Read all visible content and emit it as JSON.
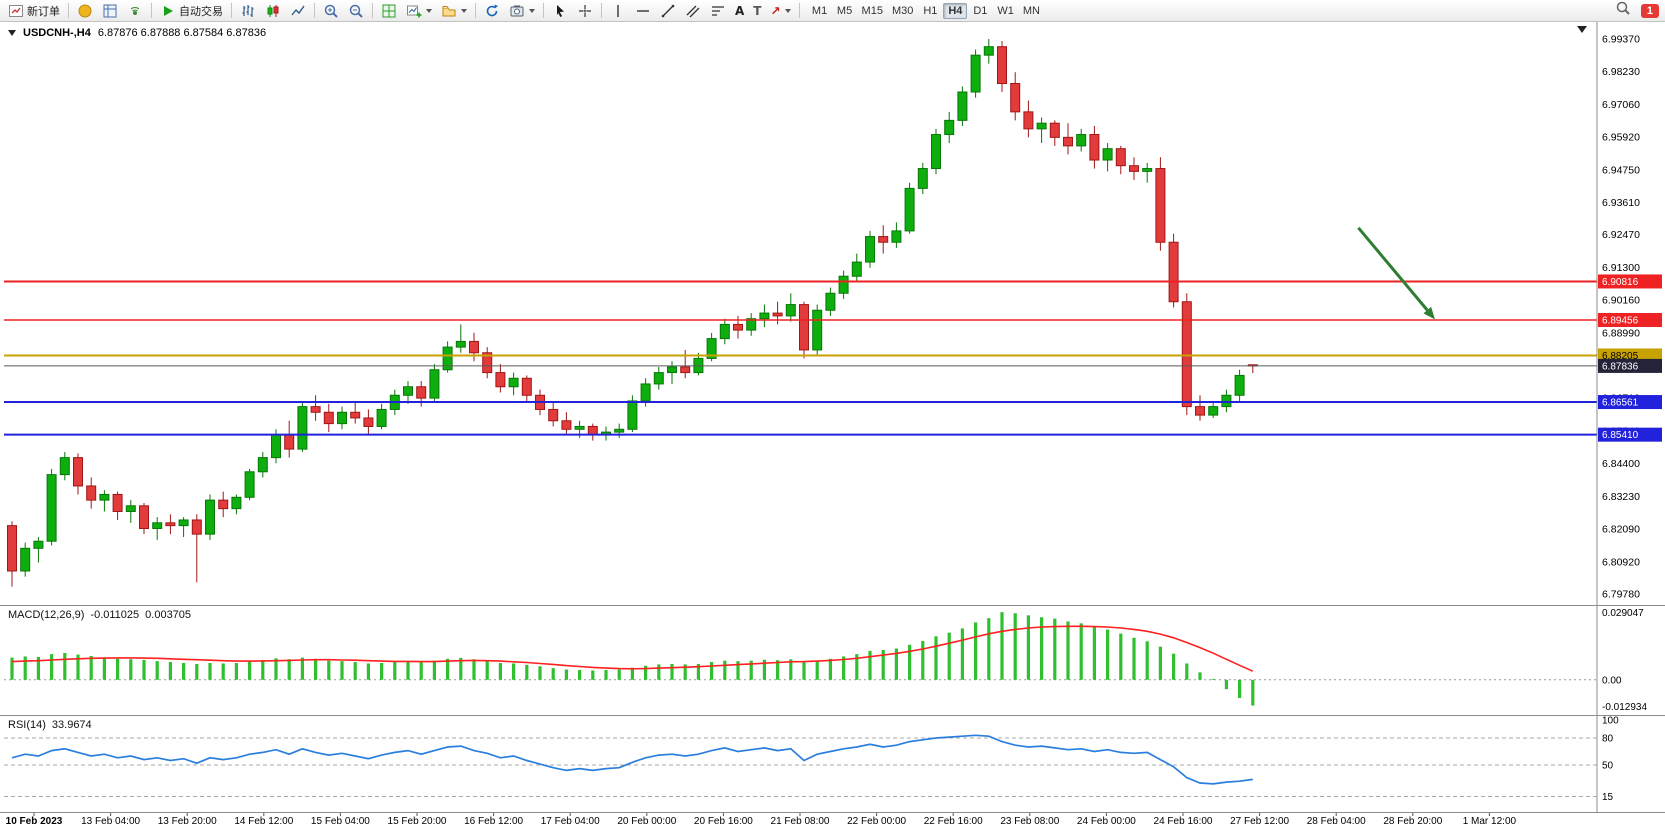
{
  "window": {
    "badge_count": "1"
  },
  "toolbar": {
    "new_order_label": "新订单",
    "auto_trading_label": "自动交易",
    "tool_glyphs": {
      "text": "A",
      "label": "T",
      "arrow": "↗"
    },
    "timeframes": [
      "M1",
      "M5",
      "M15",
      "M30",
      "H1",
      "H4",
      "D1",
      "W1",
      "MN"
    ],
    "active_timeframe": "H4"
  },
  "chart": {
    "title_symbol": "USDCNH-,H4",
    "title_ohlc": "6.87876 6.87888 6.87584 6.87836"
  },
  "chart_data": {
    "type": "candlestick",
    "symbol": "USDCNH",
    "timeframe": "H4",
    "current_ohlc": {
      "open": 6.87876,
      "high": 6.87888,
      "low": 6.87584,
      "close": 6.87836
    },
    "colors": {
      "up": "#0fae0f",
      "up_stroke": "#077707",
      "down": "#e23b3b",
      "down_stroke": "#a11616",
      "background": "#ffffff"
    },
    "price_axis": {
      "min": 6.794,
      "max": 6.999,
      "labels": [
        "6.99370",
        "6.98230",
        "6.97060",
        "6.95920",
        "6.94750",
        "6.93610",
        "6.92470",
        "6.91300",
        "6.90160",
        "6.88990",
        "6.87850",
        "6.86710",
        "6.85540",
        "6.84400",
        "6.83230",
        "6.82090",
        "6.80920",
        "6.79780"
      ]
    },
    "time_labels": [
      "10 Feb 2023",
      "13 Feb 04:00",
      "13 Feb 20:00",
      "14 Feb 12:00",
      "15 Feb 04:00",
      "15 Feb 20:00",
      "16 Feb 12:00",
      "17 Feb 04:00",
      "20 Feb 00:00",
      "20 Feb 16:00",
      "21 Feb 08:00",
      "22 Feb 00:00",
      "22 Feb 16:00",
      "23 Feb 08:00",
      "24 Feb 00:00",
      "24 Feb 16:00",
      "27 Feb 12:00",
      "28 Feb 04:00",
      "28 Feb 20:00",
      "1 Mar 12:00"
    ],
    "candles": [
      [
        6.822,
        6.8235,
        6.8005,
        6.806
      ],
      [
        6.806,
        6.816,
        6.804,
        6.814
      ],
      [
        6.814,
        6.818,
        6.809,
        6.8165
      ],
      [
        6.8165,
        6.842,
        6.815,
        6.84
      ],
      [
        6.84,
        6.848,
        6.838,
        6.846
      ],
      [
        6.846,
        6.8475,
        6.833,
        6.836
      ],
      [
        6.836,
        6.839,
        6.828,
        6.831
      ],
      [
        6.831,
        6.8345,
        6.827,
        6.833
      ],
      [
        6.833,
        6.834,
        6.824,
        6.827
      ],
      [
        6.827,
        6.831,
        6.823,
        6.829
      ],
      [
        6.829,
        6.83,
        6.819,
        6.821
      ],
      [
        6.821,
        6.825,
        6.817,
        6.823
      ],
      [
        6.823,
        6.826,
        6.819,
        6.822
      ],
      [
        6.822,
        6.825,
        6.818,
        6.824
      ],
      [
        6.824,
        6.826,
        6.802,
        6.819
      ],
      [
        6.819,
        6.833,
        6.817,
        6.831
      ],
      [
        6.831,
        6.834,
        6.825,
        6.828
      ],
      [
        6.828,
        6.833,
        6.826,
        6.832
      ],
      [
        6.832,
        6.842,
        6.831,
        6.841
      ],
      [
        6.841,
        6.848,
        6.839,
        6.846
      ],
      [
        6.846,
        6.856,
        6.844,
        6.854
      ],
      [
        6.854,
        6.859,
        6.846,
        6.849
      ],
      [
        6.849,
        6.866,
        6.848,
        6.864
      ],
      [
        6.864,
        6.868,
        6.859,
        6.862
      ],
      [
        6.862,
        6.865,
        6.855,
        6.858
      ],
      [
        6.858,
        6.864,
        6.856,
        6.862
      ],
      [
        6.862,
        6.866,
        6.858,
        6.86
      ],
      [
        6.86,
        6.863,
        6.854,
        6.857
      ],
      [
        6.857,
        6.865,
        6.856,
        6.863
      ],
      [
        6.863,
        6.87,
        6.861,
        6.868
      ],
      [
        6.868,
        6.873,
        6.865,
        6.871
      ],
      [
        6.871,
        6.873,
        6.864,
        6.867
      ],
      [
        6.867,
        6.879,
        6.866,
        6.877
      ],
      [
        6.877,
        6.887,
        6.876,
        6.885
      ],
      [
        6.885,
        6.893,
        6.883,
        6.887
      ],
      [
        6.887,
        6.89,
        6.88,
        6.883
      ],
      [
        6.883,
        6.885,
        6.874,
        6.876
      ],
      [
        6.876,
        6.879,
        6.869,
        6.871
      ],
      [
        6.871,
        6.876,
        6.868,
        6.874
      ],
      [
        6.874,
        6.875,
        6.866,
        6.868
      ],
      [
        6.868,
        6.87,
        6.861,
        6.863
      ],
      [
        6.863,
        6.866,
        6.857,
        6.859
      ],
      [
        6.859,
        6.862,
        6.854,
        6.856
      ],
      [
        6.856,
        6.859,
        6.853,
        6.857
      ],
      [
        6.857,
        6.858,
        6.852,
        6.854
      ],
      [
        6.854,
        6.857,
        6.852,
        6.855
      ],
      [
        6.855,
        6.858,
        6.853,
        6.856
      ],
      [
        6.856,
        6.868,
        6.855,
        6.866
      ],
      [
        6.866,
        6.874,
        6.864,
        6.872
      ],
      [
        6.872,
        6.878,
        6.87,
        6.876
      ],
      [
        6.876,
        6.88,
        6.872,
        6.878
      ],
      [
        6.878,
        6.884,
        6.874,
        6.876
      ],
      [
        6.876,
        6.883,
        6.875,
        6.881
      ],
      [
        6.881,
        6.89,
        6.88,
        6.888
      ],
      [
        6.888,
        6.895,
        6.886,
        6.893
      ],
      [
        6.893,
        6.896,
        6.888,
        6.891
      ],
      [
        6.891,
        6.897,
        6.889,
        6.895
      ],
      [
        6.895,
        6.9,
        6.892,
        6.897
      ],
      [
        6.897,
        6.901,
        6.893,
        6.896
      ],
      [
        6.896,
        6.904,
        6.894,
        6.9
      ],
      [
        6.9,
        6.901,
        6.881,
        6.884
      ],
      [
        6.884,
        6.9,
        6.882,
        6.898
      ],
      [
        6.898,
        6.906,
        6.896,
        6.904
      ],
      [
        6.904,
        6.912,
        6.902,
        6.91
      ],
      [
        6.91,
        6.918,
        6.908,
        6.915
      ],
      [
        6.915,
        6.926,
        6.913,
        6.924
      ],
      [
        6.924,
        6.928,
        6.918,
        6.922
      ],
      [
        6.922,
        6.929,
        6.92,
        6.926
      ],
      [
        6.926,
        6.943,
        6.925,
        6.941
      ],
      [
        6.941,
        6.95,
        6.939,
        6.948
      ],
      [
        6.948,
        6.962,
        6.946,
        6.96
      ],
      [
        6.96,
        6.968,
        6.957,
        6.965
      ],
      [
        6.965,
        6.977,
        6.963,
        6.975
      ],
      [
        6.975,
        6.99,
        6.973,
        6.988
      ],
      [
        6.988,
        6.9937,
        6.985,
        6.991
      ],
      [
        6.991,
        6.993,
        6.975,
        6.978
      ],
      [
        6.978,
        6.982,
        6.965,
        6.968
      ],
      [
        6.968,
        6.972,
        6.959,
        6.962
      ],
      [
        6.962,
        6.966,
        6.957,
        6.964
      ],
      [
        6.964,
        6.965,
        6.956,
        6.959
      ],
      [
        6.959,
        6.964,
        6.953,
        6.956
      ],
      [
        6.956,
        6.962,
        6.954,
        6.96
      ],
      [
        6.96,
        6.963,
        6.948,
        6.951
      ],
      [
        6.951,
        6.957,
        6.947,
        6.955
      ],
      [
        6.955,
        6.956,
        6.946,
        6.949
      ],
      [
        6.949,
        6.952,
        6.944,
        6.947
      ],
      [
        6.947,
        6.95,
        6.943,
        6.948
      ],
      [
        6.948,
        6.952,
        6.919,
        6.922
      ],
      [
        6.922,
        6.925,
        6.899,
        6.901
      ],
      [
        6.901,
        6.904,
        6.861,
        6.864
      ],
      [
        6.864,
        6.868,
        6.859,
        6.861
      ],
      [
        6.861,
        6.866,
        6.86,
        6.864
      ],
      [
        6.864,
        6.87,
        6.862,
        6.868
      ],
      [
        6.868,
        6.877,
        6.866,
        6.875
      ],
      [
        6.87876,
        6.87888,
        6.87584,
        6.87836
      ]
    ],
    "hlines": [
      {
        "name": "resistance-line-1",
        "price": 6.90816,
        "label": "6.90816",
        "color": "#ee2222",
        "width": 2,
        "tag_bg": "#ee2222",
        "tag_fg": "#ffffff",
        "interactable": true
      },
      {
        "name": "resistance-line-2",
        "price": 6.89456,
        "label": "6.89456",
        "color": "#ee2222",
        "width": 1.4,
        "tag_bg": "#ee2222",
        "tag_fg": "#ffffff",
        "interactable": true
      },
      {
        "name": "pivot-line",
        "price": 6.88205,
        "label": "6.88205",
        "color": "#c8a200",
        "width": 2,
        "tag_bg": "#c8a200",
        "tag_fg": "#000000",
        "interactable": true
      },
      {
        "name": "bid-price-line",
        "price": 6.87836,
        "label": "6.87836",
        "color": "#5a5a5a",
        "width": 1,
        "tag_bg": "#23233a",
        "tag_fg": "#ffffff",
        "interactable": false
      },
      {
        "name": "support-line-1",
        "price": 6.86561,
        "label": "6.86561",
        "color": "#2222dd",
        "width": 2,
        "tag_bg": "#2222dd",
        "tag_fg": "#ffffff",
        "interactable": true
      },
      {
        "name": "support-line-2",
        "price": 6.8541,
        "label": "6.85410",
        "color": "#2222dd",
        "width": 2,
        "tag_bg": "#2222dd",
        "tag_fg": "#ffffff",
        "interactable": true
      }
    ],
    "annotation_arrow": {
      "from_bar": 102,
      "from_price": 6.9271,
      "to_bar": 107.8,
      "to_price": 6.8948,
      "color": "#2e7d32"
    },
    "indicators": {
      "macd": {
        "label": "MACD(12,26,9)",
        "value": "-0.011025",
        "signal": "0.003705",
        "max": 0.029047,
        "min": -0.012934,
        "scale_labels": [
          "0.029047",
          "0.00",
          "-0.012934"
        ],
        "histogram_color": "#2fbf2f",
        "signal_color": "#ff2020",
        "histogram": [
          0.0095,
          0.01,
          0.0098,
          0.011,
          0.0115,
          0.0108,
          0.0102,
          0.0095,
          0.009,
          0.0088,
          0.0085,
          0.008,
          0.0076,
          0.0072,
          0.0068,
          0.0072,
          0.007,
          0.0072,
          0.0078,
          0.0085,
          0.0092,
          0.0088,
          0.0095,
          0.009,
          0.0082,
          0.008,
          0.0076,
          0.007,
          0.0072,
          0.0078,
          0.0082,
          0.0076,
          0.0082,
          0.009,
          0.0094,
          0.0088,
          0.008,
          0.0072,
          0.007,
          0.0064,
          0.0058,
          0.005,
          0.0044,
          0.0042,
          0.004,
          0.0042,
          0.0044,
          0.0052,
          0.006,
          0.0066,
          0.0068,
          0.0066,
          0.0068,
          0.0076,
          0.0082,
          0.008,
          0.0082,
          0.0086,
          0.0084,
          0.0088,
          0.0078,
          0.0082,
          0.009,
          0.01,
          0.011,
          0.0124,
          0.0128,
          0.0134,
          0.015,
          0.0166,
          0.0186,
          0.0202,
          0.022,
          0.0246,
          0.0264,
          0.029,
          0.0285,
          0.0276,
          0.0268,
          0.0262,
          0.025,
          0.0242,
          0.023,
          0.0215,
          0.0198,
          0.018,
          0.0165,
          0.0142,
          0.0112,
          0.007,
          0.0032,
          0.0004,
          -0.004,
          -0.0078,
          -0.011025
        ],
        "signal_line": [
          0.0078,
          0.008,
          0.0082,
          0.0085,
          0.0088,
          0.009,
          0.0092,
          0.0093,
          0.0094,
          0.0094,
          0.0093,
          0.0092,
          0.009,
          0.0088,
          0.0086,
          0.0084,
          0.0082,
          0.008,
          0.008,
          0.0081,
          0.0082,
          0.0083,
          0.0085,
          0.0086,
          0.0086,
          0.0085,
          0.0084,
          0.0082,
          0.008,
          0.0079,
          0.0079,
          0.0078,
          0.0078,
          0.008,
          0.0082,
          0.0083,
          0.0082,
          0.008,
          0.0077,
          0.0074,
          0.007,
          0.0066,
          0.0061,
          0.0057,
          0.0053,
          0.005,
          0.0048,
          0.0047,
          0.0048,
          0.005,
          0.0052,
          0.0054,
          0.0056,
          0.0059,
          0.0062,
          0.0065,
          0.0068,
          0.0071,
          0.0074,
          0.0077,
          0.0078,
          0.008,
          0.0083,
          0.0087,
          0.0092,
          0.0099,
          0.0106,
          0.0113,
          0.0122,
          0.0132,
          0.0144,
          0.0157,
          0.017,
          0.0184,
          0.0197,
          0.0208,
          0.0216,
          0.0222,
          0.0226,
          0.0228,
          0.0229,
          0.0229,
          0.0228,
          0.0226,
          0.0222,
          0.0216,
          0.0208,
          0.0196,
          0.018,
          0.016,
          0.0138,
          0.0114,
          0.0088,
          0.0062,
          0.003705
        ]
      },
      "rsi": {
        "label": "RSI(14)",
        "value": "33.9674",
        "max": 100,
        "min": 0,
        "levels": [
          80,
          50,
          15
        ],
        "scale_labels": [
          "100",
          "80",
          "50",
          "15"
        ],
        "scale_values": [
          100,
          80,
          50,
          15
        ],
        "color": "#2a7fde",
        "values": [
          58,
          62,
          60,
          66,
          68,
          64,
          60,
          62,
          58,
          60,
          56,
          58,
          55,
          57,
          52,
          58,
          56,
          58,
          62,
          64,
          67,
          62,
          68,
          64,
          61,
          63,
          60,
          57,
          61,
          64,
          66,
          62,
          66,
          70,
          71,
          66,
          63,
          58,
          60,
          55,
          51,
          47,
          44,
          46,
          44,
          46,
          47,
          53,
          58,
          61,
          62,
          60,
          62,
          66,
          69,
          65,
          67,
          69,
          66,
          68,
          55,
          62,
          65,
          68,
          70,
          73,
          70,
          72,
          76,
          78,
          80,
          81,
          82,
          83,
          82,
          76,
          72,
          70,
          71,
          69,
          67,
          68,
          65,
          67,
          64,
          63,
          64,
          56,
          48,
          36,
          30,
          29,
          31,
          32,
          33.9674
        ]
      }
    }
  }
}
